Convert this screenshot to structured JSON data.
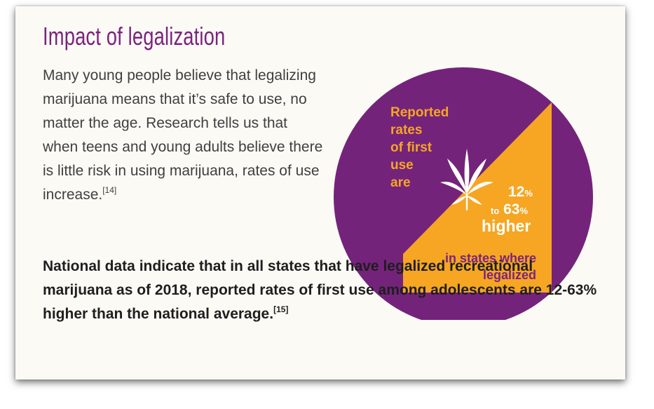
{
  "card": {
    "title": "Impact of legalization",
    "paragraph1": {
      "text": "Many young people believe that legalizing marijuana means that it’s safe to use, no matter the age. Research tells us that when teens and young adults believe there is little risk in using marijuana, rates of use increase.",
      "citation": "[14]"
    },
    "paragraph2": {
      "text": "National data indicate that in all states that have legalized recreational marijuana as of 2018, reported rates of first use among adolescents are 12-63% higher than the national average.",
      "citation": "[15]"
    }
  },
  "infographic": {
    "rates_lines": [
      "Reported",
      "rates",
      "of first",
      "use",
      "are"
    ],
    "pct_low": "12",
    "pct_low_unit": "%",
    "pct_to": "to",
    "pct_high": "63",
    "pct_high_unit": "%",
    "higher": "higher",
    "states_lines": [
      "in states where",
      "legalized"
    ],
    "icon": "cannabis-leaf-icon",
    "colors": {
      "circle": "#74237b",
      "wedge": "#f6a623",
      "leaf": "#ffffff",
      "title": "#7a237e"
    }
  }
}
